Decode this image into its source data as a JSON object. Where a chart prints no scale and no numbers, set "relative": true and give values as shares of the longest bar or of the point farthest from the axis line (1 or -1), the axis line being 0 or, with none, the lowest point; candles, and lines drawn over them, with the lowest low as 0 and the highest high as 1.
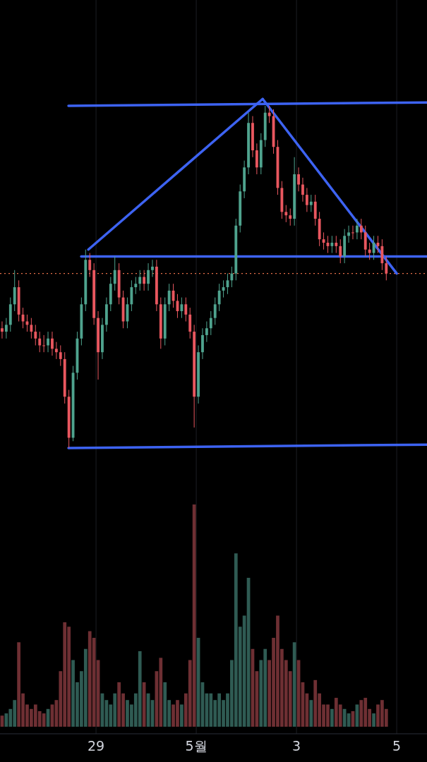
{
  "chart_data": [
    {
      "type": "candlestick",
      "relative": true,
      "xlim": [
        "--04-27T02:00",
        "--05-05T14:30"
      ],
      "x": [
        "--04-27T03:00",
        "--04-27T05:00",
        "--04-27T07:00",
        "--04-27T09:00",
        "--04-27T11:00",
        "--04-27T13:00",
        "--04-27T15:00",
        "--04-27T17:00",
        "--04-27T19:00",
        "--04-27T21:00",
        "--04-27T23:00",
        "--04-28T01:00",
        "--04-28T03:00",
        "--04-28T05:00",
        "--04-28T07:00",
        "--04-28T09:00",
        "--04-28T11:00",
        "--04-28T13:00",
        "--04-28T15:00",
        "--04-28T17:00",
        "--04-28T19:00",
        "--04-28T21:00",
        "--04-28T23:00",
        "--04-29T01:00",
        "--04-29T03:00",
        "--04-29T05:00",
        "--04-29T07:00",
        "--04-29T09:00",
        "--04-29T11:00",
        "--04-29T13:00",
        "--04-29T15:00",
        "--04-29T17:00",
        "--04-29T19:00",
        "--04-29T21:00",
        "--04-29T23:00",
        "--04-30T01:00",
        "--04-30T03:00",
        "--04-30T05:00",
        "--04-30T07:00",
        "--04-30T09:00",
        "--04-30T11:00",
        "--04-30T13:00",
        "--04-30T15:00",
        "--04-30T17:00",
        "--04-30T19:00",
        "--04-30T21:00",
        "--04-30T23:00",
        "--05-01T01:00",
        "--05-01T03:00",
        "--05-01T05:00",
        "--05-01T07:00",
        "--05-01T09:00",
        "--05-01T11:00",
        "--05-01T13:00",
        "--05-01T15:00",
        "--05-01T17:00",
        "--05-01T19:00",
        "--05-01T21:00",
        "--05-01T23:00",
        "--05-02T01:00",
        "--05-02T03:00",
        "--05-02T05:00",
        "--05-02T07:00",
        "--05-02T09:00",
        "--05-02T11:00",
        "--05-02T13:00",
        "--05-02T15:00",
        "--05-02T17:00",
        "--05-02T19:00",
        "--05-02T21:00",
        "--05-02T23:00",
        "--05-03T01:00",
        "--05-03T03:00",
        "--05-03T05:00",
        "--05-03T07:00",
        "--05-03T09:00",
        "--05-03T11:00",
        "--05-03T13:00",
        "--05-03T15:00",
        "--05-03T17:00",
        "--05-03T19:00",
        "--05-03T21:00",
        "--05-03T23:00",
        "--05-04T01:00",
        "--05-04T03:00",
        "--05-04T05:00",
        "--05-04T07:00",
        "--05-04T09:00",
        "--05-04T11:00",
        "--05-04T13:00",
        "--05-04T15:00",
        "--05-04T17:00",
        "--05-04T19:00"
      ],
      "ohlc": [
        [
          0.35,
          0.37,
          0.32,
          0.34
        ],
        [
          0.34,
          0.38,
          0.32,
          0.36
        ],
        [
          0.36,
          0.44,
          0.34,
          0.42
        ],
        [
          0.42,
          0.52,
          0.4,
          0.47
        ],
        [
          0.47,
          0.49,
          0.37,
          0.39
        ],
        [
          0.39,
          0.41,
          0.35,
          0.37
        ],
        [
          0.37,
          0.39,
          0.34,
          0.36
        ],
        [
          0.36,
          0.38,
          0.32,
          0.34
        ],
        [
          0.34,
          0.36,
          0.3,
          0.32
        ],
        [
          0.32,
          0.34,
          0.28,
          0.3
        ],
        [
          0.3,
          0.33,
          0.28,
          0.3
        ],
        [
          0.3,
          0.34,
          0.28,
          0.32
        ],
        [
          0.32,
          0.34,
          0.27,
          0.29
        ],
        [
          0.29,
          0.31,
          0.26,
          0.28
        ],
        [
          0.28,
          0.3,
          0.24,
          0.26
        ],
        [
          0.26,
          0.28,
          0.13,
          0.15
        ],
        [
          0.15,
          0.17,
          0,
          0.03
        ],
        [
          0.03,
          0.24,
          0.02,
          0.22
        ],
        [
          0.22,
          0.34,
          0.2,
          0.32
        ],
        [
          0.32,
          0.44,
          0.3,
          0.42
        ],
        [
          0.42,
          0.58,
          0.4,
          0.55
        ],
        [
          0.55,
          0.57,
          0.5,
          0.52
        ],
        [
          0.52,
          0.54,
          0.36,
          0.38
        ],
        [
          0.38,
          0.4,
          0.2,
          0.28
        ],
        [
          0.28,
          0.38,
          0.26,
          0.36
        ],
        [
          0.36,
          0.44,
          0.34,
          0.42
        ],
        [
          0.42,
          0.5,
          0.4,
          0.48
        ],
        [
          0.48,
          0.56,
          0.46,
          0.52
        ],
        [
          0.52,
          0.54,
          0.42,
          0.44
        ],
        [
          0.44,
          0.46,
          0.35,
          0.37
        ],
        [
          0.37,
          0.44,
          0.35,
          0.42
        ],
        [
          0.42,
          0.49,
          0.4,
          0.47
        ],
        [
          0.47,
          0.5,
          0.45,
          0.48
        ],
        [
          0.48,
          0.52,
          0.46,
          0.5
        ],
        [
          0.5,
          0.52,
          0.46,
          0.48
        ],
        [
          0.48,
          0.54,
          0.46,
          0.52
        ],
        [
          0.52,
          0.55,
          0.5,
          0.53
        ],
        [
          0.53,
          0.55,
          0.4,
          0.42
        ],
        [
          0.42,
          0.44,
          0.29,
          0.32
        ],
        [
          0.32,
          0.44,
          0.3,
          0.42
        ],
        [
          0.42,
          0.48,
          0.4,
          0.46
        ],
        [
          0.46,
          0.48,
          0.41,
          0.43
        ],
        [
          0.43,
          0.45,
          0.38,
          0.4
        ],
        [
          0.4,
          0.44,
          0.38,
          0.42
        ],
        [
          0.42,
          0.44,
          0.37,
          0.39
        ],
        [
          0.39,
          0.41,
          0.32,
          0.34
        ],
        [
          0.34,
          0.36,
          0.06,
          0.15
        ],
        [
          0.15,
          0.3,
          0.13,
          0.28
        ],
        [
          0.28,
          0.35,
          0.26,
          0.33
        ],
        [
          0.33,
          0.37,
          0.31,
          0.35
        ],
        [
          0.35,
          0.4,
          0.33,
          0.38
        ],
        [
          0.38,
          0.44,
          0.36,
          0.42
        ],
        [
          0.42,
          0.48,
          0.4,
          0.46
        ],
        [
          0.46,
          0.49,
          0.44,
          0.47
        ],
        [
          0.47,
          0.51,
          0.45,
          0.49
        ],
        [
          0.49,
          0.53,
          0.47,
          0.51
        ],
        [
          0.51,
          0.67,
          0.49,
          0.65
        ],
        [
          0.65,
          0.77,
          0.63,
          0.75
        ],
        [
          0.75,
          0.84,
          0.73,
          0.82
        ],
        [
          0.82,
          0.98,
          0.8,
          0.95
        ],
        [
          0.95,
          0.97,
          0.85,
          0.87
        ],
        [
          0.87,
          0.89,
          0.8,
          0.82
        ],
        [
          0.82,
          0.92,
          0.8,
          0.9
        ],
        [
          0.9,
          1,
          0.88,
          0.98
        ],
        [
          0.98,
          1,
          0.95,
          0.97
        ],
        [
          0.97,
          0.99,
          0.86,
          0.88
        ],
        [
          0.88,
          0.9,
          0.74,
          0.76
        ],
        [
          0.76,
          0.78,
          0.67,
          0.69
        ],
        [
          0.69,
          0.71,
          0.66,
          0.68
        ],
        [
          0.68,
          0.7,
          0.65,
          0.67
        ],
        [
          0.67,
          0.85,
          0.65,
          0.8
        ],
        [
          0.8,
          0.82,
          0.75,
          0.77
        ],
        [
          0.77,
          0.79,
          0.72,
          0.74
        ],
        [
          0.74,
          0.76,
          0.69,
          0.71
        ],
        [
          0.71,
          0.74,
          0.69,
          0.72
        ],
        [
          0.72,
          0.74,
          0.65,
          0.67
        ],
        [
          0.67,
          0.69,
          0.59,
          0.61
        ],
        [
          0.61,
          0.63,
          0.58,
          0.6
        ],
        [
          0.6,
          0.62,
          0.57,
          0.59
        ],
        [
          0.59,
          0.62,
          0.57,
          0.6
        ],
        [
          0.6,
          0.62,
          0.57,
          0.59
        ],
        [
          0.59,
          0.61,
          0.54,
          0.56
        ],
        [
          0.56,
          0.64,
          0.54,
          0.62
        ],
        [
          0.62,
          0.65,
          0.6,
          0.63
        ],
        [
          0.63,
          0.65,
          0.61,
          0.63
        ],
        [
          0.63,
          0.67,
          0.61,
          0.65
        ],
        [
          0.65,
          0.67,
          0.61,
          0.63
        ],
        [
          0.63,
          0.65,
          0.56,
          0.58
        ],
        [
          0.58,
          0.6,
          0.55,
          0.57
        ],
        [
          0.57,
          0.62,
          0.55,
          0.6
        ],
        [
          0.6,
          0.62,
          0.57,
          0.59
        ],
        [
          0.59,
          0.61,
          0.52,
          0.54
        ],
        [
          0.54,
          0.56,
          0.49,
          0.51
        ]
      ],
      "colors": [
        "#e9575f",
        "#4fa38e",
        "#4fa38e",
        "#4fa38e",
        "#e9575f",
        "#e9575f",
        "#e9575f",
        "#e9575f",
        "#e9575f",
        "#e9575f",
        "#e9575f",
        "#4fa38e",
        "#e9575f",
        "#e9575f",
        "#e9575f",
        "#e9575f",
        "#e9575f",
        "#4fa38e",
        "#4fa38e",
        "#4fa38e",
        "#4fa38e",
        "#e9575f",
        "#e9575f",
        "#e9575f",
        "#4fa38e",
        "#4fa38e",
        "#4fa38e",
        "#4fa38e",
        "#e9575f",
        "#e9575f",
        "#4fa38e",
        "#4fa38e",
        "#4fa38e",
        "#4fa38e",
        "#e9575f",
        "#4fa38e",
        "#4fa38e",
        "#e9575f",
        "#e9575f",
        "#4fa38e",
        "#4fa38e",
        "#e9575f",
        "#e9575f",
        "#4fa38e",
        "#e9575f",
        "#e9575f",
        "#e9575f",
        "#4fa38e",
        "#4fa38e",
        "#4fa38e",
        "#4fa38e",
        "#4fa38e",
        "#4fa38e",
        "#4fa38e",
        "#4fa38e",
        "#4fa38e",
        "#4fa38e",
        "#4fa38e",
        "#4fa38e",
        "#4fa38e",
        "#e9575f",
        "#e9575f",
        "#4fa38e",
        "#4fa38e",
        "#e9575f",
        "#e9575f",
        "#e9575f",
        "#e9575f",
        "#e9575f",
        "#e9575f",
        "#4fa38e",
        "#e9575f",
        "#e9575f",
        "#e9575f",
        "#4fa38e",
        "#e9575f",
        "#e9575f",
        "#e9575f",
        "#e9575f",
        "#4fa38e",
        "#e9575f",
        "#e9575f",
        "#4fa38e",
        "#4fa38e",
        "#e9575f",
        "#4fa38e",
        "#e9575f",
        "#e9575f",
        "#e9575f",
        "#4fa38e",
        "#e9575f",
        "#e9575f",
        "#e9575f"
      ],
      "series": [
        {
          "type": "line",
          "color": "#3d63f2",
          "x": [
            "--04-28T10:48",
            "--05-05T14:30"
          ],
          "values": [
            1.0,
            1.01
          ]
        },
        {
          "type": "line",
          "color": "#3d63f2",
          "x": [
            "--04-28T10:48",
            "--05-05T14:30"
          ],
          "values": [
            0,
            0.01
          ]
        },
        {
          "type": "line",
          "color": "#3d63f2",
          "x": [
            "--04-28T16:54",
            "--05-05T14:30"
          ],
          "values": [
            0.56,
            0.56
          ]
        },
        {
          "type": "line",
          "color": "#3d63f2",
          "x": [
            "--04-28T20:18",
            "--05-02T07:48"
          ],
          "values": [
            0.58,
            1.02
          ]
        },
        {
          "type": "line",
          "color": "#3d63f2",
          "x": [
            "--05-02T07:48",
            "--05-05T00:00"
          ],
          "values": [
            1.02,
            0.51
          ]
        }
      ],
      "ref_lines": [
        {
          "axis": "y",
          "value": 0.51,
          "color": "#e8704a",
          "line_style": "dotted"
        }
      ]
    },
    {
      "type": "bar",
      "relative": true,
      "xlim": [
        "--04-27T02:00",
        "--05-05T14:30"
      ],
      "grid": "x",
      "xticks": [
        {
          "value": "--04-29",
          "label": "29"
        },
        {
          "value": "--05-01",
          "label": "5월"
        },
        {
          "value": "--05-03",
          "label": "3"
        },
        {
          "value": "--05-05",
          "label": "5"
        }
      ],
      "x": [
        "--04-27T03:00",
        "--04-27T05:00",
        "--04-27T07:00",
        "--04-27T09:00",
        "--04-27T11:00",
        "--04-27T13:00",
        "--04-27T15:00",
        "--04-27T17:00",
        "--04-27T19:00",
        "--04-27T21:00",
        "--04-27T23:00",
        "--04-28T01:00",
        "--04-28T03:00",
        "--04-28T05:00",
        "--04-28T07:00",
        "--04-28T09:00",
        "--04-28T11:00",
        "--04-28T13:00",
        "--04-28T15:00",
        "--04-28T17:00",
        "--04-28T19:00",
        "--04-28T21:00",
        "--04-28T23:00",
        "--04-29T01:00",
        "--04-29T03:00",
        "--04-29T05:00",
        "--04-29T07:00",
        "--04-29T09:00",
        "--04-29T11:00",
        "--04-29T13:00",
        "--04-29T15:00",
        "--04-29T17:00",
        "--04-29T19:00",
        "--04-29T21:00",
        "--04-29T23:00",
        "--04-30T01:00",
        "--04-30T03:00",
        "--04-30T05:00",
        "--04-30T07:00",
        "--04-30T09:00",
        "--04-30T11:00",
        "--04-30T13:00",
        "--04-30T15:00",
        "--04-30T17:00",
        "--04-30T19:00",
        "--04-30T21:00",
        "--04-30T23:00",
        "--05-01T01:00",
        "--05-01T03:00",
        "--05-01T05:00",
        "--05-01T07:00",
        "--05-01T09:00",
        "--05-01T11:00",
        "--05-01T13:00",
        "--05-01T15:00",
        "--05-01T17:00",
        "--05-01T19:00",
        "--05-01T21:00",
        "--05-01T23:00",
        "--05-02T01:00",
        "--05-02T03:00",
        "--05-02T05:00",
        "--05-02T07:00",
        "--05-02T09:00",
        "--05-02T11:00",
        "--05-02T13:00",
        "--05-02T15:00",
        "--05-02T17:00",
        "--05-02T19:00",
        "--05-02T21:00",
        "--05-02T23:00",
        "--05-03T01:00",
        "--05-03T03:00",
        "--05-03T05:00",
        "--05-03T07:00",
        "--05-03T09:00",
        "--05-03T11:00",
        "--05-03T13:00",
        "--05-03T15:00",
        "--05-03T17:00",
        "--05-03T19:00",
        "--05-03T21:00",
        "--05-03T23:00",
        "--05-04T01:00",
        "--05-04T03:00",
        "--05-04T05:00",
        "--05-04T07:00",
        "--05-04T09:00",
        "--05-04T11:00",
        "--05-04T13:00",
        "--05-04T15:00",
        "--05-04T17:00",
        "--05-04T19:00"
      ],
      "values": [
        0.05,
        0.06,
        0.08,
        0.12,
        0.38,
        0.15,
        0.1,
        0.08,
        0.1,
        0.07,
        0.06,
        0.08,
        0.1,
        0.12,
        0.25,
        0.47,
        0.45,
        0.3,
        0.2,
        0.25,
        0.35,
        0.43,
        0.4,
        0.3,
        0.15,
        0.12,
        0.1,
        0.15,
        0.2,
        0.15,
        0.12,
        0.1,
        0.15,
        0.34,
        0.2,
        0.15,
        0.12,
        0.25,
        0.31,
        0.2,
        0.12,
        0.1,
        0.12,
        0.1,
        0.15,
        0.3,
        1,
        0.4,
        0.2,
        0.15,
        0.15,
        0.12,
        0.15,
        0.12,
        0.15,
        0.3,
        0.78,
        0.45,
        0.5,
        0.67,
        0.35,
        0.25,
        0.3,
        0.35,
        0.3,
        0.4,
        0.5,
        0.35,
        0.3,
        0.25,
        0.38,
        0.3,
        0.2,
        0.15,
        0.12,
        0.21,
        0.15,
        0.1,
        0.1,
        0.08,
        0.13,
        0.1,
        0.08,
        0.06,
        0.07,
        0.1,
        0.12,
        0.13,
        0.08,
        0.06,
        0.1,
        0.12,
        0.08
      ],
      "colors": [
        "#6e2f33",
        "#2f5b53",
        "#2f5b53",
        "#2f5b53",
        "#6e2f33",
        "#6e2f33",
        "#6e2f33",
        "#6e2f33",
        "#6e2f33",
        "#6e2f33",
        "#6e2f33",
        "#2f5b53",
        "#6e2f33",
        "#6e2f33",
        "#6e2f33",
        "#6e2f33",
        "#6e2f33",
        "#2f5b53",
        "#2f5b53",
        "#2f5b53",
        "#2f5b53",
        "#6e2f33",
        "#6e2f33",
        "#6e2f33",
        "#2f5b53",
        "#2f5b53",
        "#2f5b53",
        "#2f5b53",
        "#6e2f33",
        "#6e2f33",
        "#2f5b53",
        "#2f5b53",
        "#2f5b53",
        "#2f5b53",
        "#6e2f33",
        "#2f5b53",
        "#2f5b53",
        "#6e2f33",
        "#6e2f33",
        "#2f5b53",
        "#2f5b53",
        "#6e2f33",
        "#6e2f33",
        "#2f5b53",
        "#6e2f33",
        "#6e2f33",
        "#6e2f33",
        "#2f5b53",
        "#2f5b53",
        "#2f5b53",
        "#2f5b53",
        "#2f5b53",
        "#2f5b53",
        "#2f5b53",
        "#2f5b53",
        "#2f5b53",
        "#2f5b53",
        "#2f5b53",
        "#2f5b53",
        "#2f5b53",
        "#6e2f33",
        "#6e2f33",
        "#2f5b53",
        "#2f5b53",
        "#6e2f33",
        "#6e2f33",
        "#6e2f33",
        "#6e2f33",
        "#6e2f33",
        "#6e2f33",
        "#2f5b53",
        "#6e2f33",
        "#6e2f33",
        "#6e2f33",
        "#2f5b53",
        "#6e2f33",
        "#6e2f33",
        "#6e2f33",
        "#6e2f33",
        "#2f5b53",
        "#6e2f33",
        "#6e2f33",
        "#2f5b53",
        "#2f5b53",
        "#6e2f33",
        "#2f5b53",
        "#6e2f33",
        "#6e2f33",
        "#6e2f33",
        "#2f5b53",
        "#6e2f33",
        "#6e2f33",
        "#6e2f33"
      ]
    }
  ]
}
